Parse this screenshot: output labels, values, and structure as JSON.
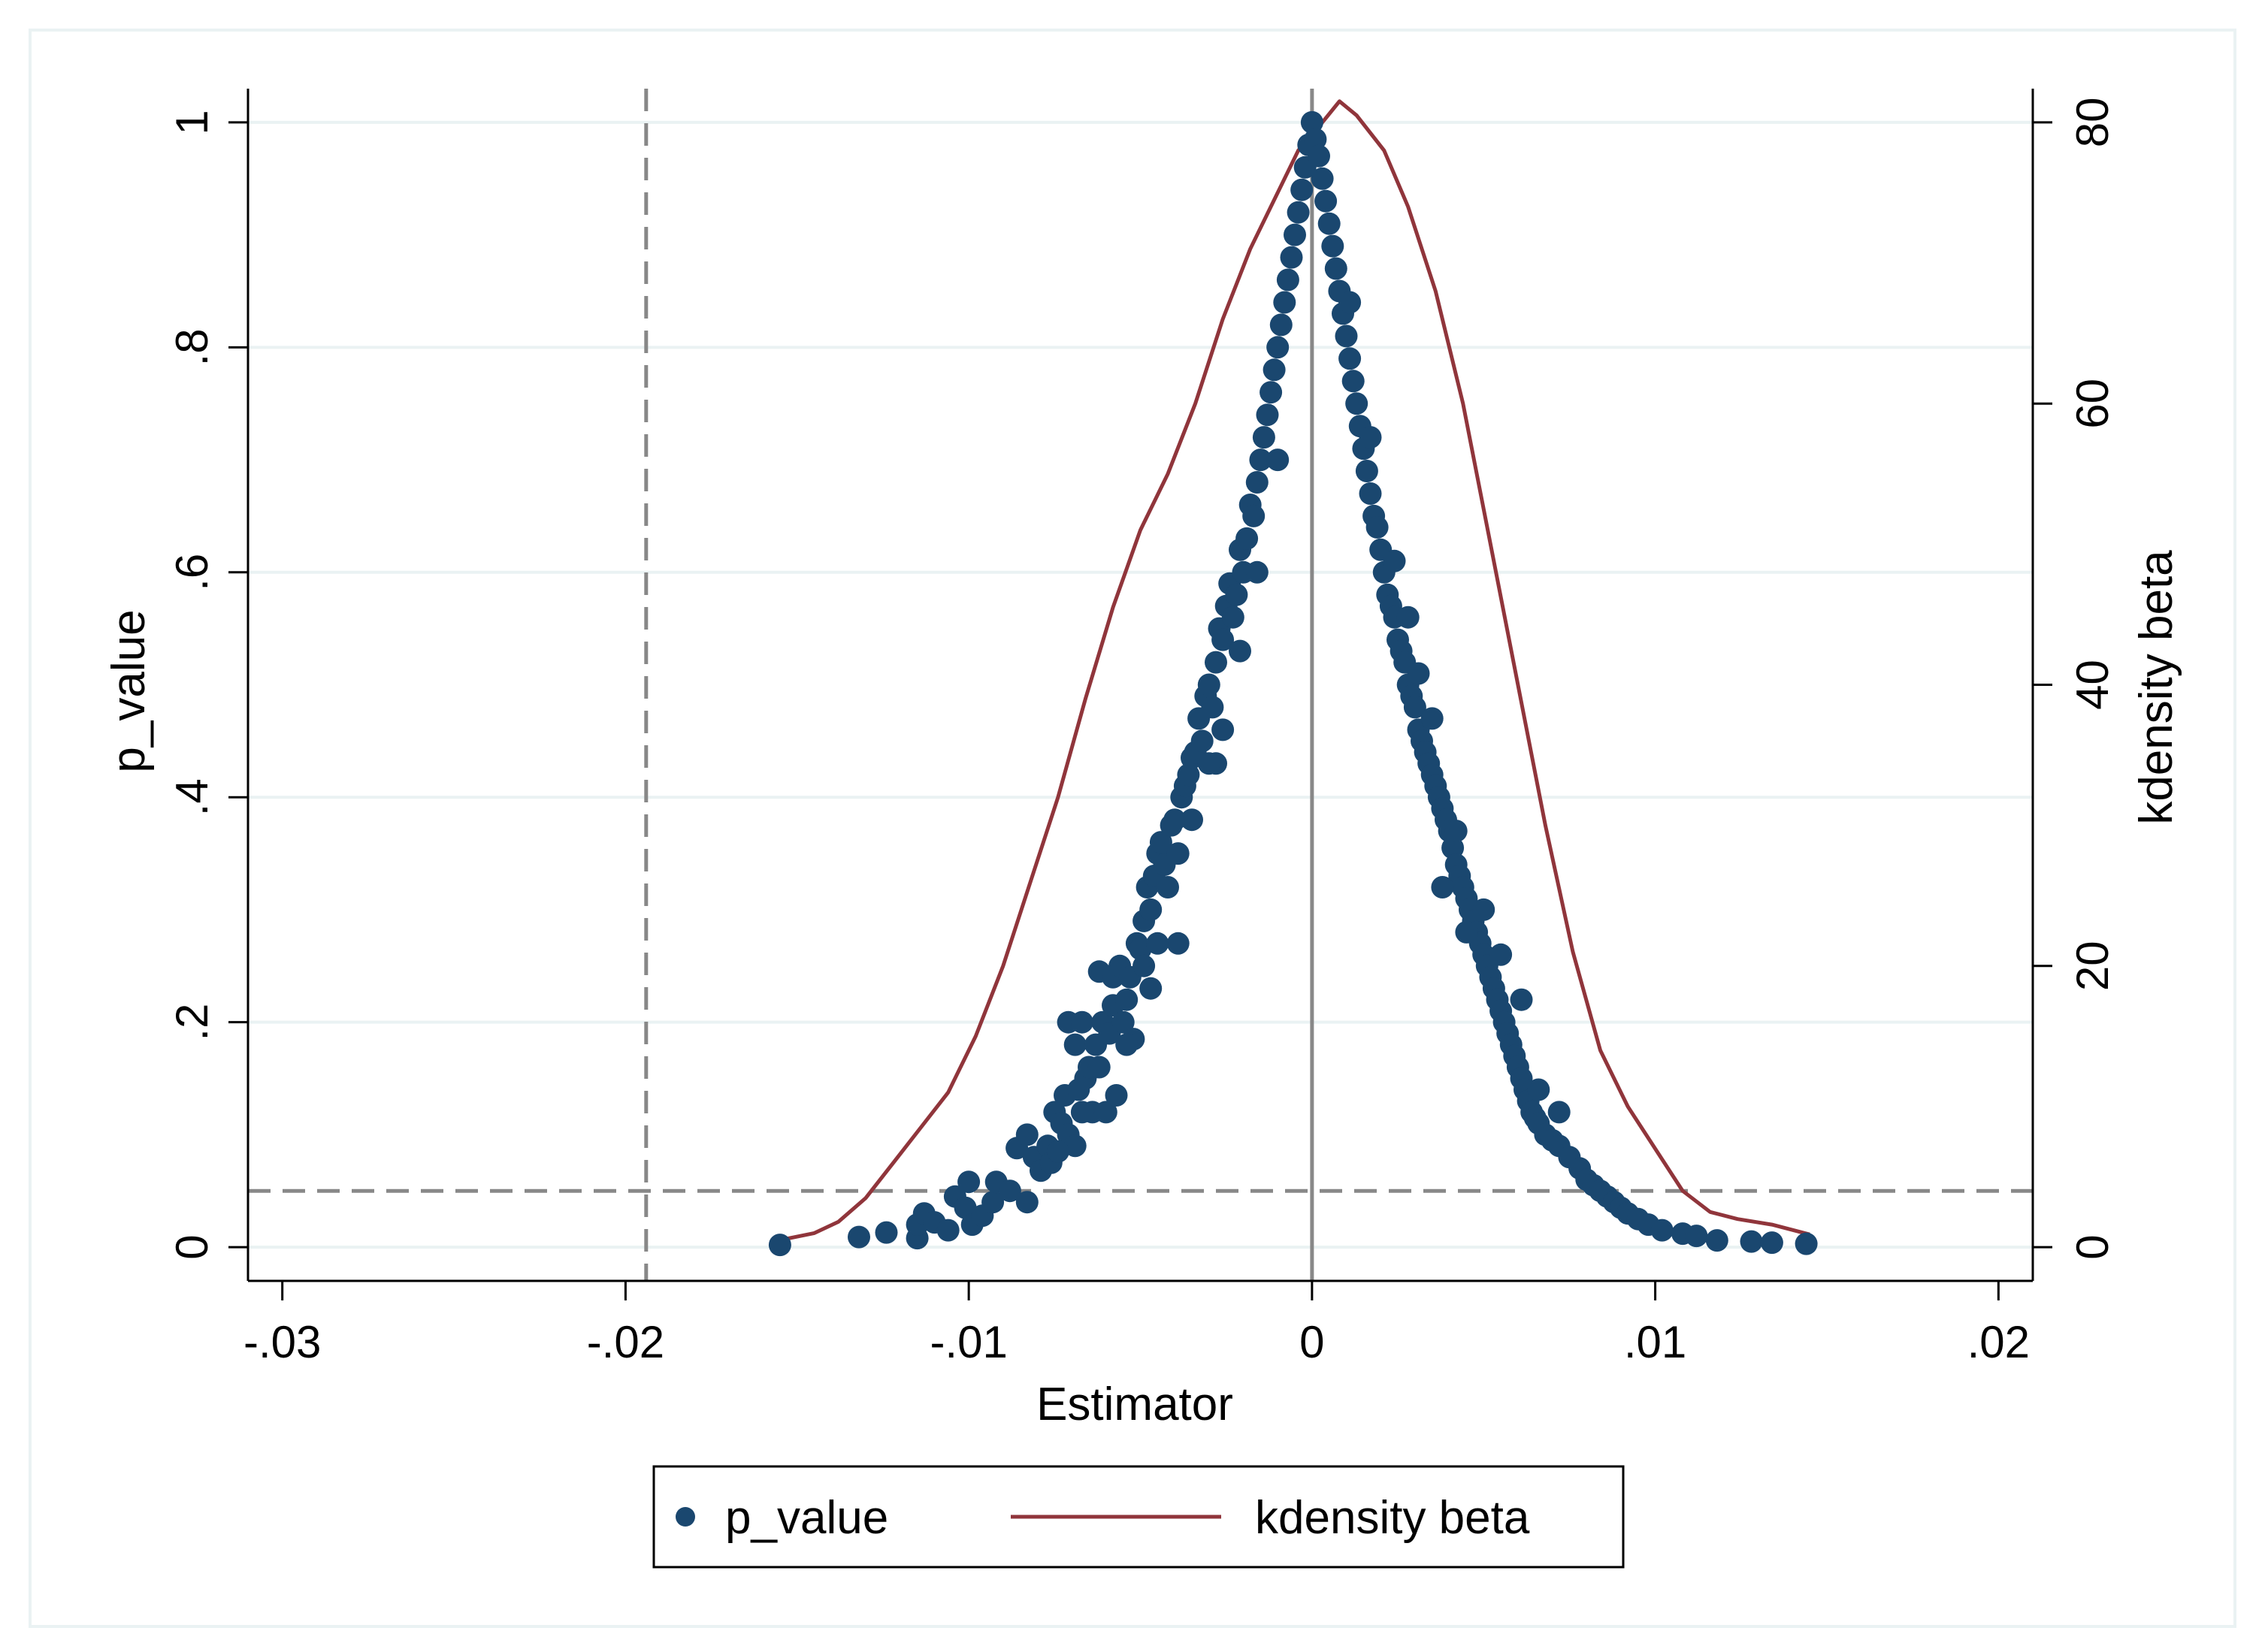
{
  "chart_data": {
    "type": "scatter",
    "xlabel": "Estimator",
    "ylabel_left": "p_value",
    "ylabel_right": "kdensity beta",
    "xlim": [
      -0.031,
      0.021
    ],
    "ylim_left": [
      -0.03,
      1.03
    ],
    "ylim_right": [
      -2.4,
      82.4
    ],
    "x_ticks": [
      {
        "v": -0.03,
        "label": "-.03"
      },
      {
        "v": -0.02,
        "label": "-.02"
      },
      {
        "v": -0.01,
        "label": "-.01"
      },
      {
        "v": 0,
        "label": "0"
      },
      {
        "v": 0.01,
        "label": ".01"
      },
      {
        "v": 0.02,
        "label": ".02"
      }
    ],
    "y_ticks_left": [
      {
        "v": 0,
        "label": "0"
      },
      {
        "v": 0.2,
        "label": ".2"
      },
      {
        "v": 0.4,
        "label": ".4"
      },
      {
        "v": 0.6,
        "label": ".6"
      },
      {
        "v": 0.8,
        "label": ".8"
      },
      {
        "v": 1,
        "label": "1"
      }
    ],
    "y_ticks_right": [
      {
        "v": 0,
        "label": "0"
      },
      {
        "v": 20,
        "label": "20"
      },
      {
        "v": 40,
        "label": "40"
      },
      {
        "v": 60,
        "label": "60"
      },
      {
        "v": 80,
        "label": "80"
      }
    ],
    "grid": true,
    "legend_position": "bottom-center",
    "reference_lines": {
      "vertical_dashed": -0.0194,
      "vertical_solid": 0,
      "horizontal_dashed_p": 0.05
    },
    "colors": {
      "scatter": "#1a476f",
      "kdensity": "#90353b",
      "grid": "#eaf2f3",
      "refline": "#888888",
      "axis": "#000000"
    },
    "series": [
      {
        "name": "p_value",
        "kind": "scatter",
        "axis": "left",
        "points": [
          [
            -0.0155,
            0.002
          ],
          [
            -0.0132,
            0.009
          ],
          [
            -0.0124,
            0.013
          ],
          [
            -0.0115,
            0.008
          ],
          [
            -0.0115,
            0.02
          ],
          [
            -0.0113,
            0.03
          ],
          [
            -0.011,
            0.022
          ],
          [
            -0.0106,
            0.015
          ],
          [
            -0.0104,
            0.045
          ],
          [
            -0.0101,
            0.035
          ],
          [
            -0.01,
            0.058
          ],
          [
            -0.0099,
            0.02
          ],
          [
            -0.0096,
            0.028
          ],
          [
            -0.0093,
            0.04
          ],
          [
            -0.0092,
            0.058
          ],
          [
            -0.0088,
            0.05
          ],
          [
            -0.0086,
            0.088
          ],
          [
            -0.0083,
            0.04
          ],
          [
            -0.0083,
            0.1
          ],
          [
            -0.0081,
            0.08
          ],
          [
            -0.0079,
            0.068
          ],
          [
            -0.0077,
            0.09
          ],
          [
            -0.0076,
            0.075
          ],
          [
            -0.0075,
            0.12
          ],
          [
            -0.0073,
            0.11
          ],
          [
            -0.0072,
            0.135
          ],
          [
            -0.0071,
            0.1
          ],
          [
            -0.0071,
            0.2
          ],
          [
            -0.0069,
            0.09
          ],
          [
            -0.0069,
            0.18
          ],
          [
            -0.0068,
            0.14
          ],
          [
            -0.0067,
            0.2
          ],
          [
            -0.0066,
            0.15
          ],
          [
            -0.0065,
            0.16
          ],
          [
            -0.0064,
            0.12
          ],
          [
            -0.0063,
            0.18
          ],
          [
            -0.0062,
            0.245
          ],
          [
            -0.0061,
            0.2
          ],
          [
            -0.006,
            0.12
          ],
          [
            -0.0059,
            0.19
          ],
          [
            -0.0058,
            0.24
          ],
          [
            -0.0058,
            0.215
          ],
          [
            -0.0057,
            0.135
          ],
          [
            -0.0056,
            0.25
          ],
          [
            -0.0055,
            0.2
          ],
          [
            -0.0054,
            0.22
          ],
          [
            -0.0053,
            0.24
          ],
          [
            -0.0052,
            0.185
          ],
          [
            -0.0051,
            0.27
          ],
          [
            -0.005,
            0.265
          ],
          [
            -0.0049,
            0.29
          ],
          [
            -0.0048,
            0.32
          ],
          [
            -0.0047,
            0.23
          ],
          [
            -0.0047,
            0.3
          ],
          [
            -0.0046,
            0.33
          ],
          [
            -0.0045,
            0.35
          ],
          [
            -0.0044,
            0.36
          ],
          [
            -0.0043,
            0.34
          ],
          [
            -0.0042,
            0.32
          ],
          [
            -0.0041,
            0.375
          ],
          [
            -0.004,
            0.38
          ],
          [
            -0.0039,
            0.27
          ],
          [
            -0.0038,
            0.4
          ],
          [
            -0.0037,
            0.41
          ],
          [
            -0.0036,
            0.42
          ],
          [
            -0.0035,
            0.435
          ],
          [
            -0.0034,
            0.44
          ],
          [
            -0.0033,
            0.47
          ],
          [
            -0.0032,
            0.45
          ],
          [
            -0.0031,
            0.49
          ],
          [
            -0.003,
            0.5
          ],
          [
            -0.0029,
            0.48
          ],
          [
            -0.0028,
            0.52
          ],
          [
            -0.0027,
            0.55
          ],
          [
            -0.0026,
            0.54
          ],
          [
            -0.0025,
            0.57
          ],
          [
            -0.0024,
            0.59
          ],
          [
            -0.0023,
            0.56
          ],
          [
            -0.0022,
            0.58
          ],
          [
            -0.0021,
            0.62
          ],
          [
            -0.002,
            0.6
          ],
          [
            -0.0019,
            0.63
          ],
          [
            -0.0018,
            0.66
          ],
          [
            -0.0017,
            0.65
          ],
          [
            -0.0016,
            0.68
          ],
          [
            -0.0015,
            0.7
          ],
          [
            -0.0014,
            0.72
          ],
          [
            -0.0013,
            0.74
          ],
          [
            -0.0012,
            0.76
          ],
          [
            -0.0011,
            0.78
          ],
          [
            -0.001,
            0.8
          ],
          [
            -0.0009,
            0.82
          ],
          [
            -0.0008,
            0.84
          ],
          [
            -0.0007,
            0.86
          ],
          [
            -0.0006,
            0.88
          ],
          [
            -0.0005,
            0.9
          ],
          [
            -0.0004,
            0.92
          ],
          [
            -0.0003,
            0.94
          ],
          [
            -0.0002,
            0.96
          ],
          [
            -0.0001,
            0.98
          ],
          [
            0,
            1.0
          ],
          [
            0.0001,
            0.985
          ],
          [
            0.0002,
            0.97
          ],
          [
            0.0003,
            0.95
          ],
          [
            0.0004,
            0.93
          ],
          [
            0.0005,
            0.91
          ],
          [
            0.0006,
            0.89
          ],
          [
            0.0007,
            0.87
          ],
          [
            0.0008,
            0.85
          ],
          [
            0.0009,
            0.83
          ],
          [
            0.001,
            0.81
          ],
          [
            0.0011,
            0.79
          ],
          [
            0.0012,
            0.77
          ],
          [
            0.0013,
            0.75
          ],
          [
            0.0014,
            0.73
          ],
          [
            0.0015,
            0.71
          ],
          [
            0.0016,
            0.69
          ],
          [
            0.0017,
            0.67
          ],
          [
            0.0018,
            0.65
          ],
          [
            0.0019,
            0.64
          ],
          [
            0.002,
            0.62
          ],
          [
            0.0021,
            0.6
          ],
          [
            0.0022,
            0.58
          ],
          [
            0.0023,
            0.57
          ],
          [
            0.0024,
            0.56
          ],
          [
            0.0025,
            0.54
          ],
          [
            0.0026,
            0.53
          ],
          [
            0.0027,
            0.52
          ],
          [
            0.0028,
            0.5
          ],
          [
            0.0029,
            0.49
          ],
          [
            0.003,
            0.48
          ],
          [
            0.0031,
            0.46
          ],
          [
            0.0032,
            0.45
          ],
          [
            0.0033,
            0.44
          ],
          [
            0.0034,
            0.43
          ],
          [
            0.0035,
            0.42
          ],
          [
            0.0036,
            0.41
          ],
          [
            0.0037,
            0.4
          ],
          [
            0.0038,
            0.39
          ],
          [
            0.0039,
            0.38
          ],
          [
            0.004,
            0.37
          ],
          [
            0.0041,
            0.355
          ],
          [
            0.0042,
            0.34
          ],
          [
            0.0043,
            0.33
          ],
          [
            0.0044,
            0.32
          ],
          [
            0.0045,
            0.31
          ],
          [
            0.0046,
            0.3
          ],
          [
            0.0047,
            0.29
          ],
          [
            0.0048,
            0.28
          ],
          [
            0.0049,
            0.27
          ],
          [
            0.005,
            0.26
          ],
          [
            0.0051,
            0.25
          ],
          [
            0.0052,
            0.24
          ],
          [
            0.0053,
            0.23
          ],
          [
            0.0054,
            0.22
          ],
          [
            0.0055,
            0.21
          ],
          [
            0.0056,
            0.2
          ],
          [
            0.0057,
            0.19
          ],
          [
            0.0058,
            0.18
          ],
          [
            0.0059,
            0.17
          ],
          [
            0.006,
            0.16
          ],
          [
            0.0061,
            0.15
          ],
          [
            0.0062,
            0.14
          ],
          [
            0.0063,
            0.13
          ],
          [
            0.0064,
            0.12
          ],
          [
            0.0065,
            0.115
          ],
          [
            0.0066,
            0.11
          ],
          [
            0.0068,
            0.1
          ],
          [
            0.007,
            0.095
          ],
          [
            0.0072,
            0.09
          ],
          [
            0.0075,
            0.08
          ],
          [
            0.0078,
            0.07
          ],
          [
            0.008,
            0.06
          ],
          [
            0.0082,
            0.055
          ],
          [
            0.0084,
            0.05
          ],
          [
            0.0086,
            0.045
          ],
          [
            0.0088,
            0.04
          ],
          [
            0.009,
            0.035
          ],
          [
            0.0092,
            0.03
          ],
          [
            0.0095,
            0.025
          ],
          [
            0.0098,
            0.02
          ],
          [
            0.0102,
            0.015
          ],
          [
            0.0108,
            0.012
          ],
          [
            0.0112,
            0.01
          ],
          [
            0.0118,
            0.006
          ],
          [
            0.0128,
            0.005
          ],
          [
            0.0134,
            0.004
          ],
          [
            0.0144,
            0.003
          ],
          [
            -0.0035,
            0.38
          ],
          [
            -0.0028,
            0.43
          ],
          [
            -0.0016,
            0.6
          ],
          [
            -0.001,
            0.7
          ],
          [
            0.0028,
            0.56
          ],
          [
            0.0035,
            0.47
          ],
          [
            0.0042,
            0.37
          ],
          [
            0.005,
            0.3
          ],
          [
            0.0055,
            0.26
          ],
          [
            0.0061,
            0.22
          ],
          [
            0.0066,
            0.14
          ],
          [
            0.0072,
            0.12
          ],
          [
            0.0045,
            0.28
          ],
          [
            0.0038,
            0.32
          ],
          [
            -0.0062,
            0.16
          ],
          [
            -0.0054,
            0.18
          ],
          [
            -0.0045,
            0.27
          ],
          [
            -0.0067,
            0.12
          ],
          [
            -0.0074,
            0.085
          ],
          [
            0.0031,
            0.51
          ],
          [
            0.0024,
            0.61
          ],
          [
            0.0017,
            0.72
          ],
          [
            0.0011,
            0.84
          ],
          [
            -0.0021,
            0.53
          ],
          [
            -0.0026,
            0.46
          ],
          [
            -0.003,
            0.43
          ],
          [
            -0.0039,
            0.35
          ],
          [
            -0.0049,
            0.25
          ]
        ]
      },
      {
        "name": "kdensity beta",
        "kind": "line",
        "axis": "right",
        "points": [
          [
            -0.0155,
            0.5
          ],
          [
            -0.0145,
            1.0
          ],
          [
            -0.0138,
            1.8
          ],
          [
            -0.013,
            3.5
          ],
          [
            -0.0122,
            6.0
          ],
          [
            -0.0114,
            8.5
          ],
          [
            -0.0106,
            11.0
          ],
          [
            -0.0098,
            15.0
          ],
          [
            -0.009,
            20.0
          ],
          [
            -0.0082,
            26.0
          ],
          [
            -0.0074,
            32.0
          ],
          [
            -0.0066,
            39.0
          ],
          [
            -0.0058,
            45.5
          ],
          [
            -0.005,
            51.0
          ],
          [
            -0.0042,
            55.0
          ],
          [
            -0.0034,
            60.0
          ],
          [
            -0.0026,
            66.0
          ],
          [
            -0.0018,
            71.0
          ],
          [
            -0.001,
            75.0
          ],
          [
            -0.0004,
            78.0
          ],
          [
            0.0003,
            80.0
          ],
          [
            0.0008,
            81.5
          ],
          [
            0.0013,
            80.5
          ],
          [
            0.0021,
            78.0
          ],
          [
            0.0028,
            74.0
          ],
          [
            0.0036,
            68.0
          ],
          [
            0.0044,
            60.0
          ],
          [
            0.0052,
            50.0
          ],
          [
            0.006,
            40.0
          ],
          [
            0.0068,
            30.0
          ],
          [
            0.0076,
            21.0
          ],
          [
            0.0084,
            14.0
          ],
          [
            0.0092,
            10.0
          ],
          [
            0.01,
            7.0
          ],
          [
            0.0108,
            4.0
          ],
          [
            0.0116,
            2.5
          ],
          [
            0.0124,
            2.0
          ],
          [
            0.0134,
            1.6
          ],
          [
            0.0145,
            0.9
          ]
        ]
      }
    ]
  }
}
